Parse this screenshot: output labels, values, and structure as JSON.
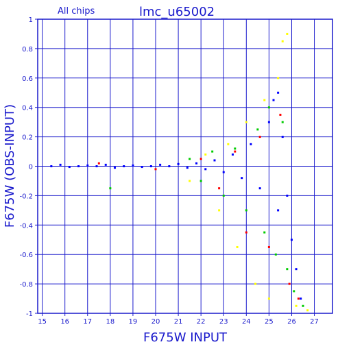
{
  "chart_data": {
    "type": "scatter",
    "title": "lmc_u65002",
    "subtitle": "All chips",
    "xlabel": "F675W INPUT",
    "ylabel": "F675W (OBS-INPUT)",
    "xlim": [
      14.8,
      27.8
    ],
    "ylim": [
      -1,
      1
    ],
    "x_ticks": [
      "15",
      "16",
      "17",
      "18",
      "19",
      "20",
      "21",
      "22",
      "23",
      "24",
      "25",
      "26",
      "27"
    ],
    "y_ticks": [
      "-1",
      "-0.8",
      "-0.6",
      "-0.4",
      "-0.2",
      "0",
      "0.2",
      "0.4",
      "0.6",
      "0.8",
      "1"
    ],
    "grid": true,
    "series": [
      {
        "color": "#0000ff",
        "points": [
          [
            15.4,
            0.0
          ],
          [
            15.8,
            0.01
          ],
          [
            16.2,
            -0.005
          ],
          [
            16.6,
            0.0
          ],
          [
            17.0,
            0.005
          ],
          [
            17.4,
            0.0
          ],
          [
            17.8,
            0.01
          ],
          [
            18.2,
            -0.01
          ],
          [
            18.6,
            0.0
          ],
          [
            19.0,
            0.005
          ],
          [
            19.4,
            -0.005
          ],
          [
            19.8,
            0.0
          ],
          [
            20.2,
            0.01
          ],
          [
            20.6,
            0.0
          ],
          [
            21.0,
            0.015
          ],
          [
            21.4,
            -0.01
          ],
          [
            21.8,
            0.02
          ],
          [
            22.2,
            -0.02
          ],
          [
            22.6,
            0.04
          ],
          [
            23.0,
            -0.04
          ],
          [
            23.4,
            0.08
          ],
          [
            23.8,
            -0.08
          ],
          [
            24.2,
            0.15
          ],
          [
            24.6,
            -0.15
          ],
          [
            25.0,
            0.3
          ],
          [
            25.2,
            0.45
          ],
          [
            25.4,
            0.5
          ],
          [
            25.4,
            -0.3
          ],
          [
            25.6,
            0.2
          ],
          [
            25.8,
            -0.2
          ],
          [
            26.0,
            -0.5
          ],
          [
            26.2,
            -0.7
          ],
          [
            26.4,
            -0.9
          ]
        ]
      },
      {
        "color": "#00cc00",
        "points": [
          [
            18.0,
            -0.15
          ],
          [
            21.5,
            0.05
          ],
          [
            22.0,
            -0.1
          ],
          [
            22.5,
            0.1
          ],
          [
            23.0,
            -0.2
          ],
          [
            23.5,
            0.12
          ],
          [
            24.0,
            -0.3
          ],
          [
            24.5,
            0.25
          ],
          [
            24.8,
            -0.45
          ],
          [
            25.0,
            0.4
          ],
          [
            25.3,
            -0.6
          ],
          [
            25.6,
            0.3
          ],
          [
            25.8,
            -0.7
          ],
          [
            26.1,
            -0.85
          ],
          [
            26.5,
            -0.95
          ]
        ]
      },
      {
        "color": "#ff0000",
        "points": [
          [
            17.5,
            0.02
          ],
          [
            20.0,
            -0.02
          ],
          [
            22.0,
            0.05
          ],
          [
            22.8,
            -0.15
          ],
          [
            23.5,
            0.1
          ],
          [
            24.0,
            -0.45
          ],
          [
            24.6,
            0.2
          ],
          [
            25.0,
            -0.55
          ],
          [
            25.5,
            0.35
          ],
          [
            25.9,
            -0.8
          ],
          [
            26.3,
            -0.9
          ]
        ]
      },
      {
        "color": "#ffff00",
        "points": [
          [
            21.5,
            -0.1
          ],
          [
            22.2,
            0.08
          ],
          [
            22.8,
            -0.3
          ],
          [
            23.2,
            0.15
          ],
          [
            23.6,
            -0.55
          ],
          [
            24.0,
            0.3
          ],
          [
            24.4,
            -0.8
          ],
          [
            24.8,
            0.45
          ],
          [
            25.0,
            -0.9
          ],
          [
            25.4,
            0.6
          ],
          [
            25.6,
            0.85
          ],
          [
            25.8,
            0.9
          ],
          [
            26.2,
            -0.95
          ],
          [
            26.7,
            -0.98
          ]
        ]
      }
    ]
  }
}
